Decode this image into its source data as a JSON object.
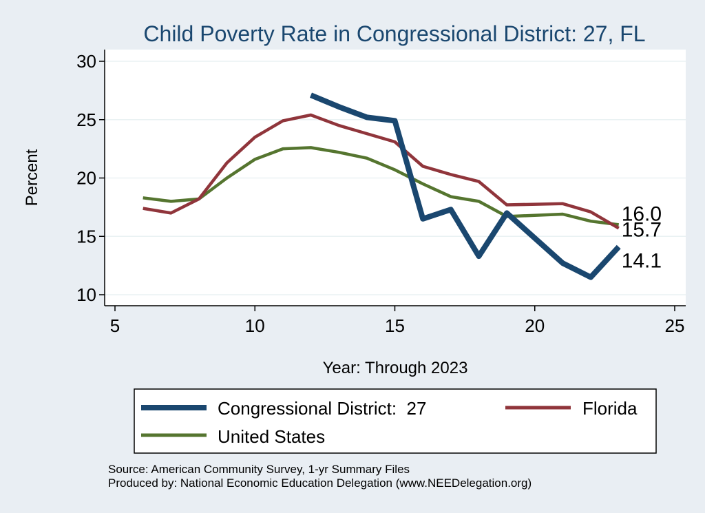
{
  "chart_data": {
    "type": "line",
    "title": "Child Poverty Rate in Congressional District:  27, FL",
    "xlabel": "Year: Through 2023",
    "ylabel": "Percent",
    "xlim": [
      5,
      25
    ],
    "ylim": [
      10,
      30
    ],
    "xticks": [
      5,
      10,
      15,
      20,
      25
    ],
    "yticks": [
      10,
      15,
      20,
      25,
      30
    ],
    "grid": true,
    "legend_position": "bottom",
    "series": [
      {
        "name": "Congressional District:  27",
        "color": "#1a476f",
        "x": [
          12,
          13,
          14,
          15,
          16,
          17,
          18,
          19,
          21,
          22,
          23
        ],
        "values": [
          27.1,
          26.1,
          25.2,
          24.9,
          16.5,
          17.3,
          13.3,
          17.0,
          12.7,
          11.5,
          14.1
        ],
        "end_label": "14.1"
      },
      {
        "name": "Florida",
        "color": "#90353b",
        "x": [
          6,
          7,
          8,
          9,
          10,
          11,
          12,
          13,
          14,
          15,
          16,
          17,
          18,
          19,
          21,
          22,
          23
        ],
        "values": [
          17.4,
          17.0,
          18.2,
          21.3,
          23.5,
          24.9,
          25.4,
          24.5,
          23.8,
          23.1,
          21.0,
          20.3,
          19.7,
          17.7,
          17.8,
          17.1,
          15.7
        ],
        "end_label": "15.7"
      },
      {
        "name": "United States",
        "color": "#55752f",
        "x": [
          6,
          7,
          8,
          9,
          10,
          11,
          12,
          13,
          14,
          15,
          16,
          17,
          18,
          19,
          21,
          22,
          23
        ],
        "values": [
          18.3,
          18.0,
          18.2,
          20.0,
          21.6,
          22.5,
          22.6,
          22.2,
          21.7,
          20.7,
          19.5,
          18.4,
          18.0,
          16.7,
          16.9,
          16.3,
          16.0
        ],
        "end_label": "16.0"
      }
    ]
  },
  "footer": {
    "source": "Source: American Community Survey, 1-yr Summary Files",
    "produced_by": "Produced by: National Economic Education Delegation (www.NEEDelegation.org)"
  }
}
